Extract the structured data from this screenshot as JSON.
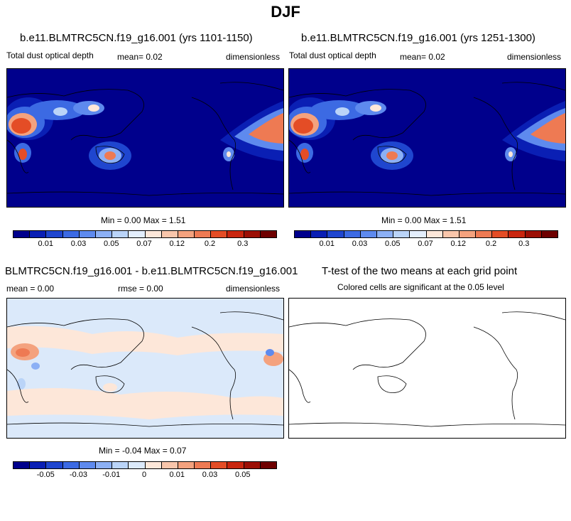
{
  "title": "DJF",
  "panels": [
    {
      "case": "b.e11.BLMTRC5CN.f19_g16.001 (yrs 1101-1150)",
      "variable": "Total dust optical depth",
      "mean": "mean=   0.02",
      "units": "dimensionless",
      "minmax": "Min =   0.00 Max =   1.51"
    },
    {
      "case": "b.e11.BLMTRC5CN.f19_g16.001 (yrs 1251-1300)",
      "variable": "Total dust optical depth",
      "mean": "mean=   0.02",
      "units": "dimensionless",
      "minmax": "Min =   0.00 Max =   1.51"
    }
  ],
  "diff": {
    "case": "BLMTRC5CN.f19_g16.001 - b.e11.BLMTRC5CN.f19_g16.001",
    "mean": "mean =   0.00",
    "rmse": "rmse =   0.00",
    "units": "dimensionless",
    "minmax": "Min =  -0.04 Max =   0.07"
  },
  "ttest": {
    "title": "T-test of the two means at each grid point",
    "subtitle": "Colored cells are significant at the 0.05 level"
  },
  "colorbars": {
    "field": {
      "colors": [
        "#00008c",
        "#0a1fb4",
        "#1f46cf",
        "#3c6ae3",
        "#5e8aee",
        "#8cb0f5",
        "#bad4f8",
        "#e3eefc",
        "#fde7d9",
        "#f9c6ab",
        "#f4a27e",
        "#ee7a53",
        "#e44d26",
        "#c9260f",
        "#9c0f05",
        "#6e0000"
      ],
      "labels": [
        "0.01",
        "0.03",
        "0.05",
        "0.07",
        "0.12",
        "0.2",
        "0.3"
      ]
    },
    "diff": {
      "colors": [
        "#00008c",
        "#0a1fb4",
        "#1f46cf",
        "#3c6ae3",
        "#5e8aee",
        "#8cb0f5",
        "#bad4f8",
        "#dbe9fa",
        "#fde7d9",
        "#f9c6ab",
        "#f4a27e",
        "#ee7a53",
        "#e44d26",
        "#c9260f",
        "#9c0f05",
        "#6e0000"
      ],
      "labels": [
        "-0.05",
        "-0.03",
        "-0.01",
        "0",
        "0.01",
        "0.03",
        "0.05"
      ]
    }
  },
  "chart_data": [
    {
      "type": "heatmap",
      "title": "b.e11.BLMTRC5CN.f19_g16.001 (yrs 1101-1150)",
      "variable": "Total dust optical depth",
      "mean": 0.02,
      "min": 0.0,
      "max": 1.51,
      "units": "dimensionless",
      "contour_levels": [
        0.01,
        0.02,
        0.03,
        0.04,
        0.05,
        0.06,
        0.07,
        0.1,
        0.12,
        0.15,
        0.2,
        0.25,
        0.3,
        0.4,
        0.5
      ],
      "colorbar_labels": [
        "0.01",
        "0.03",
        "0.05",
        "0.07",
        "0.12",
        "0.2",
        "0.3"
      ]
    },
    {
      "type": "heatmap",
      "title": "b.e11.BLMTRC5CN.f19_g16.001 (yrs 1251-1300)",
      "variable": "Total dust optical depth",
      "mean": 0.02,
      "min": 0.0,
      "max": 1.51,
      "units": "dimensionless",
      "contour_levels": [
        0.01,
        0.02,
        0.03,
        0.04,
        0.05,
        0.06,
        0.07,
        0.1,
        0.12,
        0.15,
        0.2,
        0.25,
        0.3,
        0.4,
        0.5
      ],
      "colorbar_labels": [
        "0.01",
        "0.03",
        "0.05",
        "0.07",
        "0.12",
        "0.2",
        "0.3"
      ]
    },
    {
      "type": "heatmap",
      "title": "BLMTRC5CN.f19_g16.001 - b.e11.BLMTRC5CN.f19_g16.001",
      "mean": 0.0,
      "rmse": 0.0,
      "min": -0.04,
      "max": 0.07,
      "units": "dimensionless",
      "colorbar_labels": [
        "-0.05",
        "-0.03",
        "-0.01",
        "0",
        "0.01",
        "0.03",
        "0.05"
      ]
    },
    {
      "type": "heatmap",
      "title": "T-test of the two means at each grid point",
      "subtitle": "Colored cells are significant at the 0.05 level"
    }
  ]
}
